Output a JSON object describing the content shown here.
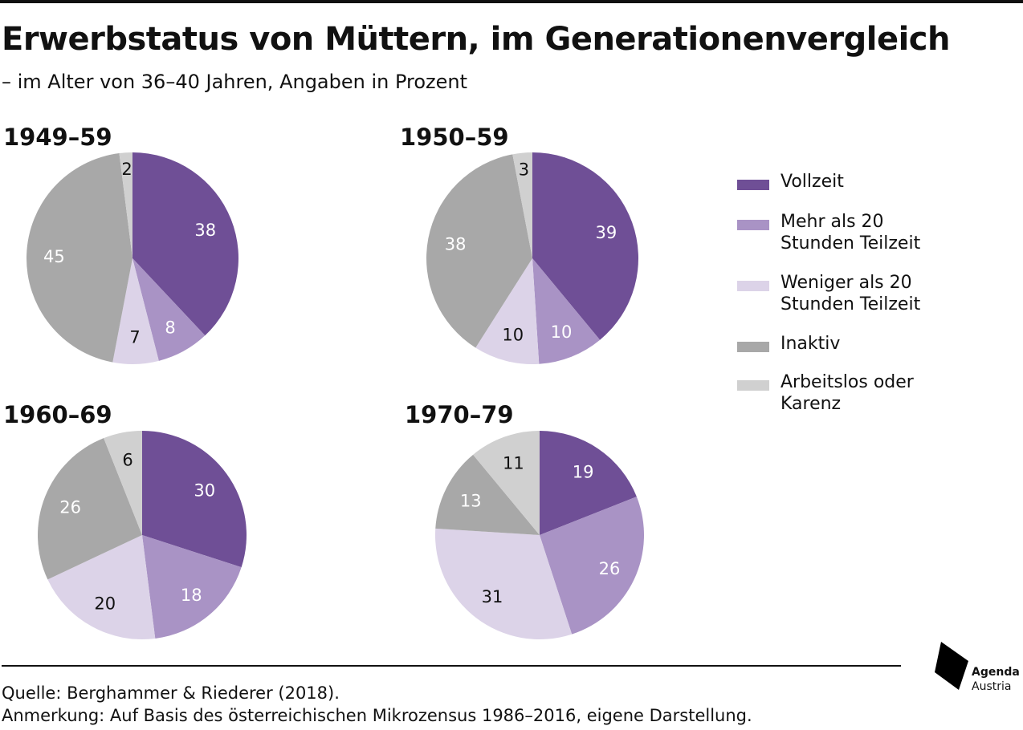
{
  "title": "Erwerbstatus von Müttern, im Generationenvergleich",
  "subtitle": "– im Alter von 36–40 Jahren, Angaben in Prozent",
  "colors": {
    "Vollzeit": "#6f4f96",
    "Mehr als 20 Stunden Teilzeit": "#a993c5",
    "Weniger als 20 Stunden Teilzeit": "#dcd3e8",
    "Inaktiv": "#a8a8a8",
    "Arbeitslos oder Karenz": "#d0d0d0"
  },
  "legend": [
    {
      "label": "Vollzeit",
      "color": "#6f4f96"
    },
    {
      "label": "Mehr als 20\nStunden Teilzeit",
      "color": "#a993c5"
    },
    {
      "label": "Weniger als 20\nStunden Teilzeit",
      "color": "#dcd3e8"
    },
    {
      "label": "Inaktiv",
      "color": "#a8a8a8"
    },
    {
      "label": "Arbeitslos oder\nKarenz",
      "color": "#d0d0d0"
    }
  ],
  "chart_data": [
    {
      "type": "pie",
      "title": "1949–59",
      "categories": [
        "Vollzeit",
        "Mehr als 20 Stunden Teilzeit",
        "Weniger als 20 Stunden Teilzeit",
        "Inaktiv",
        "Arbeitslos oder Karenz"
      ],
      "values": [
        38,
        8,
        7,
        45,
        2
      ]
    },
    {
      "type": "pie",
      "title": "1950–59",
      "categories": [
        "Vollzeit",
        "Mehr als 20 Stunden Teilzeit",
        "Weniger als 20 Stunden Teilzeit",
        "Inaktiv",
        "Arbeitslos oder Karenz"
      ],
      "values": [
        39,
        10,
        10,
        38,
        3
      ]
    },
    {
      "type": "pie",
      "title": "1960–69",
      "categories": [
        "Vollzeit",
        "Mehr als 20 Stunden Teilzeit",
        "Weniger als 20 Stunden Teilzeit",
        "Inaktiv",
        "Arbeitslos oder Karenz"
      ],
      "values": [
        30,
        18,
        20,
        26,
        6
      ]
    },
    {
      "type": "pie",
      "title": "1970–79",
      "categories": [
        "Vollzeit",
        "Mehr als 20 Stunden Teilzeit",
        "Weniger als 20 Stunden Teilzeit",
        "Inaktiv",
        "Arbeitslos oder Karenz"
      ],
      "values": [
        19,
        26,
        31,
        13,
        11
      ]
    }
  ],
  "footer": {
    "source": "Quelle: Berghammer & Riederer (2018).",
    "note": "Anmerkung: Auf Basis des österreichischen Mikrozensus 1986–2016, eigene Darstellung."
  },
  "logo": {
    "line1": "Agenda",
    "line2": "Austria",
    "icon": "agenda-austria-logo-icon"
  }
}
